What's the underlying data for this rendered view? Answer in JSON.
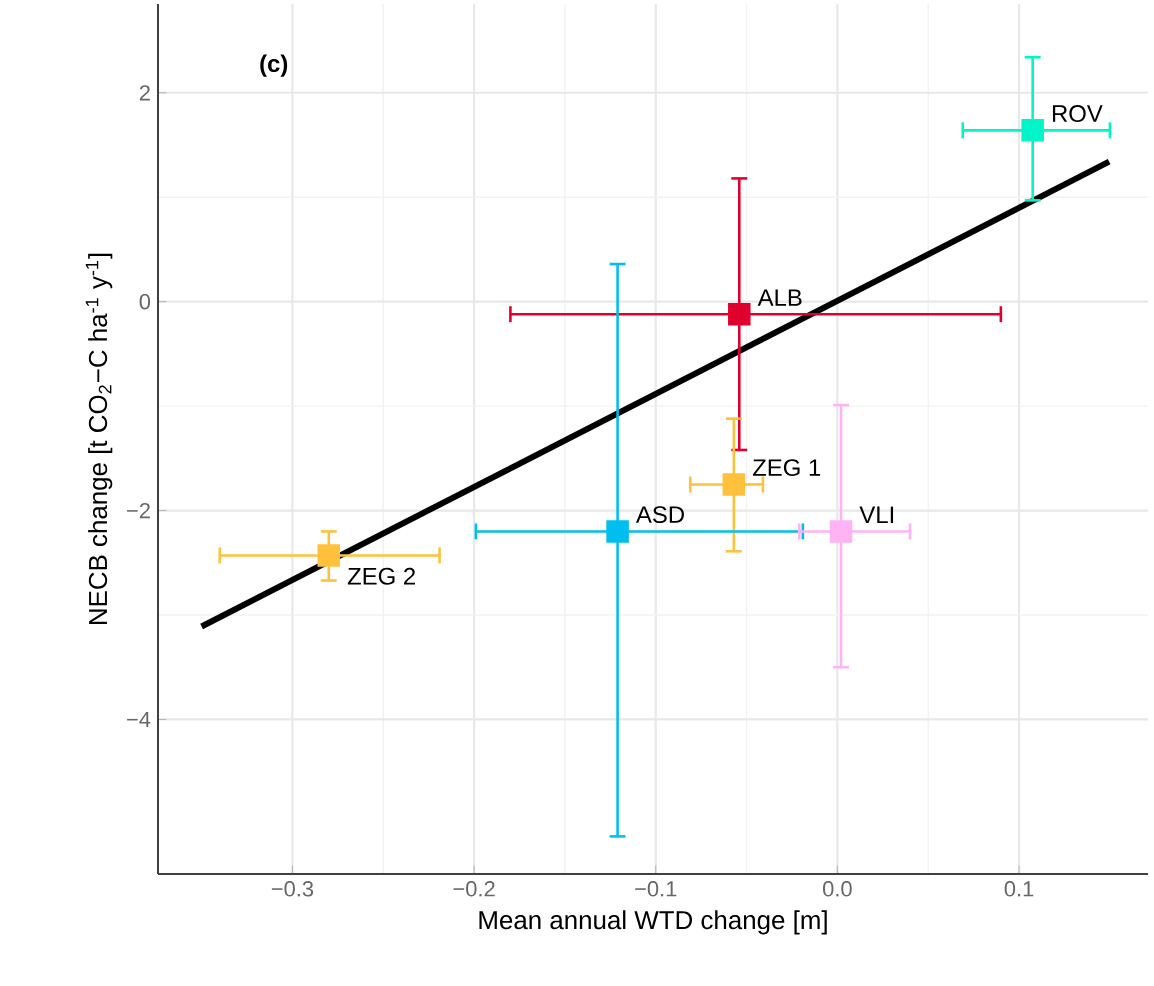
{
  "chart_data": {
    "type": "scatter",
    "xlabel": "Mean annual WTD change [m]",
    "ylabel": "NECB change [t CO$_{2}$−C ha$^{-1}$ y$^{-1}$]",
    "annotations": [
      "(c)"
    ],
    "xlim": [
      -0.374,
      0.171
    ],
    "ylim": [
      -5.48,
      2.85
    ],
    "xticks": [
      {
        "value": -0.3,
        "label": "−0.3"
      },
      {
        "value": -0.2,
        "label": "−0.2"
      },
      {
        "value": -0.1,
        "label": "−0.1"
      },
      {
        "value": 0,
        "label": "0.0"
      },
      {
        "value": 0.1,
        "label": "0.1"
      }
    ],
    "yticks": [
      {
        "value": -4,
        "label": "−4"
      },
      {
        "value": -2,
        "label": "−2"
      },
      {
        "value": 0,
        "label": "0"
      },
      {
        "value": 2,
        "label": "2"
      }
    ],
    "grid": true,
    "marker": "square",
    "series": [
      {
        "type": "line",
        "marker": "none",
        "color": "#000000",
        "x": [
          -0.35,
          0.1496
        ],
        "values": [
          -3.11,
          1.34
        ]
      },
      {
        "name": "ROV",
        "color": "#00f5c8",
        "x": [
          0.1075
        ],
        "values": [
          1.64
        ],
        "errors": [
          [
            0.97,
            2.34
          ]
        ],
        "xerrors": [
          [
            0.069,
            0.15
          ]
        ]
      },
      {
        "name": "ALB",
        "color": "#e0002e",
        "x": [
          -0.054
        ],
        "values": [
          -0.12
        ],
        "errors": [
          [
            -1.42,
            1.18
          ]
        ],
        "xerrors": [
          [
            -0.18,
            0.09
          ]
        ]
      },
      {
        "name": "ZEG 1",
        "color": "#ffc13b",
        "x": [
          -0.057
        ],
        "values": [
          -1.75
        ],
        "errors": [
          [
            -2.39,
            -1.12
          ]
        ],
        "xerrors": [
          [
            -0.081,
            -0.041
          ]
        ]
      },
      {
        "name": "ASD",
        "color": "#00bfef",
        "x": [
          -0.121
        ],
        "values": [
          -2.2
        ],
        "errors": [
          [
            -5.12,
            0.36
          ]
        ],
        "xerrors": [
          [
            -0.199,
            -0.019
          ]
        ]
      },
      {
        "name": "VLI",
        "color": "#ffb3f5",
        "x": [
          0.002
        ],
        "values": [
          -2.2
        ],
        "errors": [
          [
            -3.5,
            -0.99
          ]
        ],
        "xerrors": [
          [
            -0.021,
            0.04
          ]
        ]
      },
      {
        "name": "ZEG 2",
        "color": "#ffc13b",
        "x": [
          -0.28
        ],
        "values": [
          -2.43
        ],
        "errors": [
          [
            -2.67,
            -2.2
          ]
        ],
        "xerrors": [
          [
            -0.34,
            -0.219
          ]
        ]
      }
    ]
  }
}
